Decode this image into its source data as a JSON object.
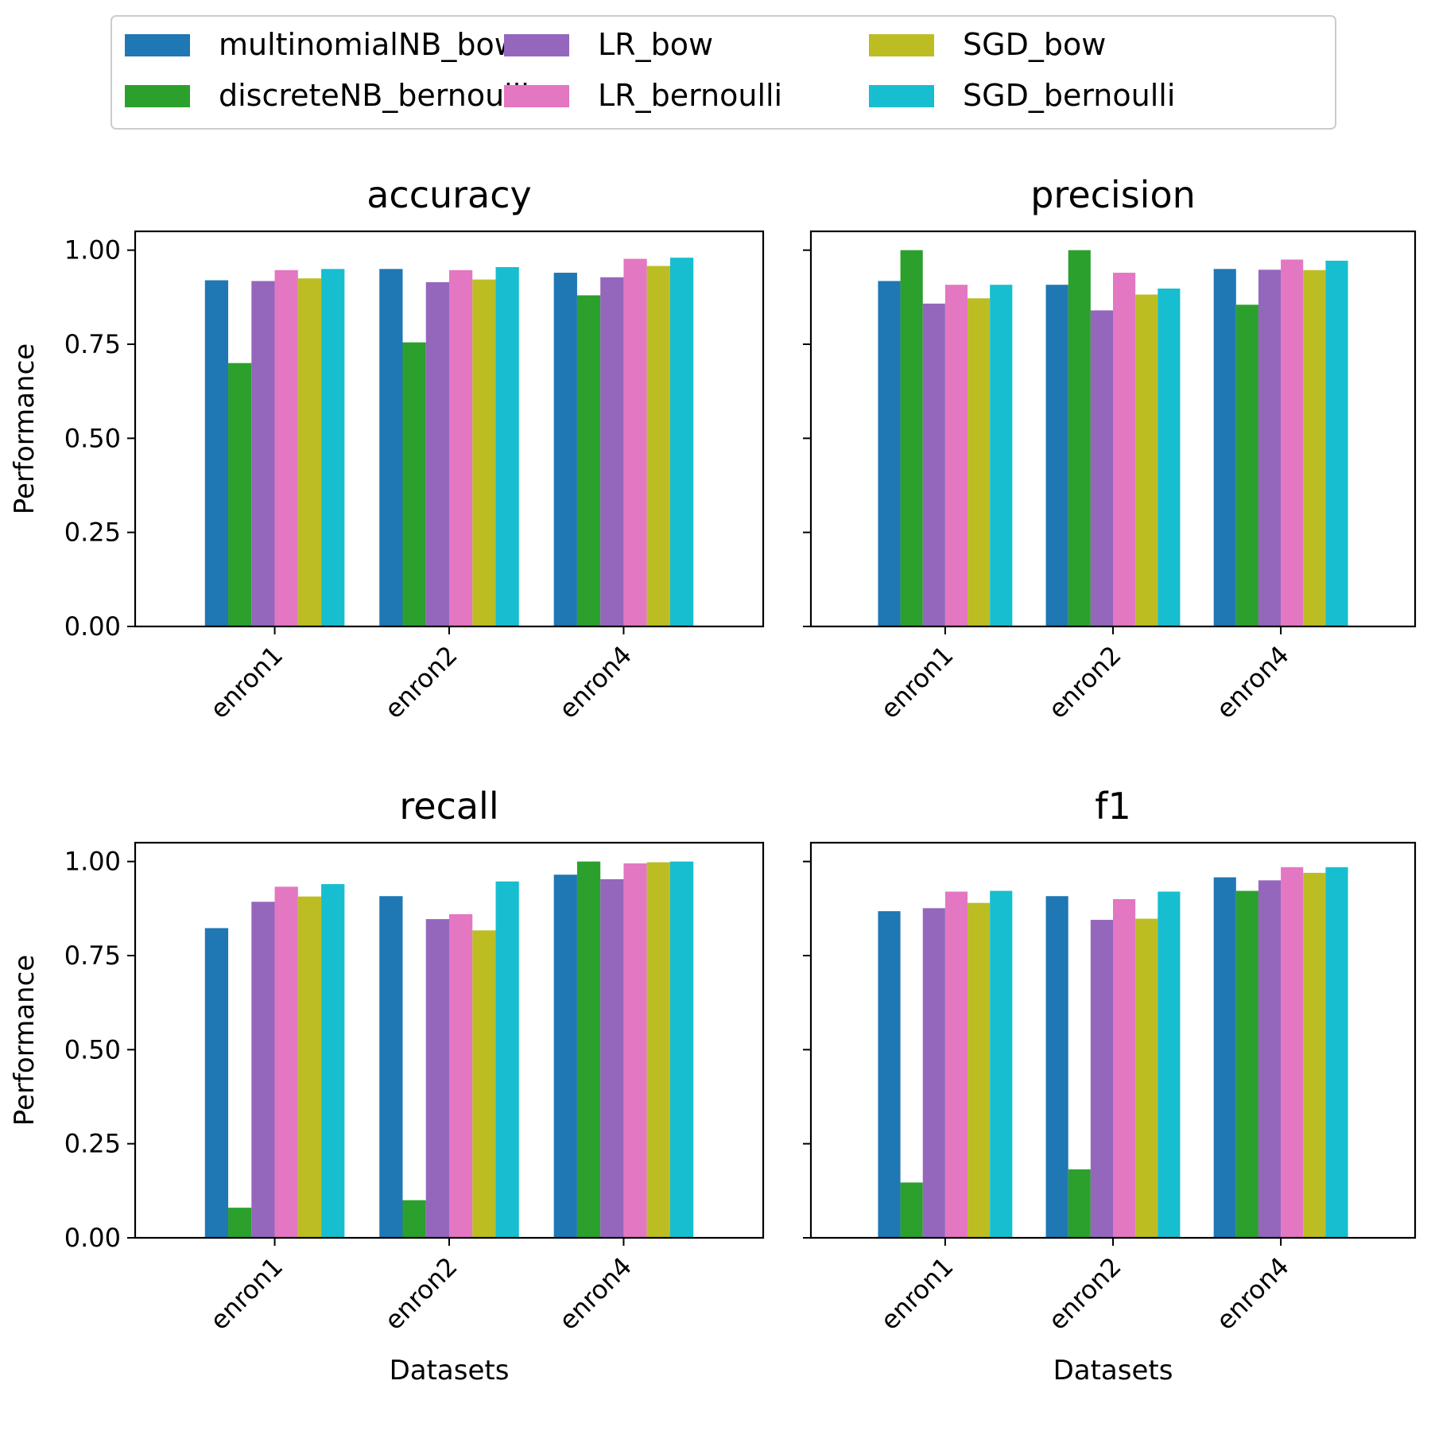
{
  "legend": {
    "entries": [
      {
        "name": "multinomialNB_bow",
        "color": "#1f77b4"
      },
      {
        "name": "discreteNB_bernoulli",
        "color": "#2ca02c"
      },
      {
        "name": "LR_bow",
        "color": "#9467bd"
      },
      {
        "name": "LR_bernoulli",
        "color": "#e377c2"
      },
      {
        "name": "SGD_bow",
        "color": "#bcbd22"
      },
      {
        "name": "SGD_bernoulli",
        "color": "#17becf"
      }
    ],
    "placement": "top-center",
    "columns": 3
  },
  "chart_data": [
    {
      "type": "bar",
      "title": "accuracy",
      "xlabel": "",
      "ylabel": "Performance",
      "categories": [
        "enron1",
        "enron2",
        "enron4"
      ],
      "ylim": [
        0,
        1.05
      ],
      "yticks": [
        "0.00",
        "0.25",
        "0.50",
        "0.75",
        "1.00"
      ],
      "grid": false,
      "series": [
        {
          "name": "multinomialNB_bow",
          "values": [
            0.92,
            0.95,
            0.94
          ]
        },
        {
          "name": "discreteNB_bernoulli",
          "values": [
            0.7,
            0.755,
            0.88
          ]
        },
        {
          "name": "LR_bow",
          "values": [
            0.918,
            0.915,
            0.928
          ]
        },
        {
          "name": "LR_bernoulli",
          "values": [
            0.947,
            0.947,
            0.977
          ]
        },
        {
          "name": "SGD_bow",
          "values": [
            0.925,
            0.922,
            0.958
          ]
        },
        {
          "name": "SGD_bernoulli",
          "values": [
            0.95,
            0.955,
            0.98
          ]
        }
      ]
    },
    {
      "type": "bar",
      "title": "precision",
      "xlabel": "",
      "ylabel": "",
      "categories": [
        "enron1",
        "enron2",
        "enron4"
      ],
      "ylim": [
        0,
        1.05
      ],
      "yticks": [
        "",
        "",
        "",
        "",
        ""
      ],
      "grid": false,
      "series": [
        {
          "name": "multinomialNB_bow",
          "values": [
            0.918,
            0.908,
            0.95
          ]
        },
        {
          "name": "discreteNB_bernoulli",
          "values": [
            1.0,
            1.0,
            0.855
          ]
        },
        {
          "name": "LR_bow",
          "values": [
            0.858,
            0.84,
            0.948
          ]
        },
        {
          "name": "LR_bernoulli",
          "values": [
            0.908,
            0.94,
            0.975
          ]
        },
        {
          "name": "SGD_bow",
          "values": [
            0.872,
            0.882,
            0.947
          ]
        },
        {
          "name": "SGD_bernoulli",
          "values": [
            0.908,
            0.898,
            0.972
          ]
        }
      ]
    },
    {
      "type": "bar",
      "title": "recall",
      "xlabel": "Datasets",
      "ylabel": "Performance",
      "categories": [
        "enron1",
        "enron2",
        "enron4"
      ],
      "ylim": [
        0,
        1.05
      ],
      "yticks": [
        "0.00",
        "0.25",
        "0.50",
        "0.75",
        "1.00"
      ],
      "grid": false,
      "series": [
        {
          "name": "multinomialNB_bow",
          "values": [
            0.823,
            0.908,
            0.965
          ]
        },
        {
          "name": "discreteNB_bernoulli",
          "values": [
            0.08,
            0.1,
            1.0
          ]
        },
        {
          "name": "LR_bow",
          "values": [
            0.893,
            0.847,
            0.953
          ]
        },
        {
          "name": "LR_bernoulli",
          "values": [
            0.933,
            0.86,
            0.995
          ]
        },
        {
          "name": "SGD_bow",
          "values": [
            0.907,
            0.817,
            0.998
          ]
        },
        {
          "name": "SGD_bernoulli",
          "values": [
            0.94,
            0.947,
            1.0
          ]
        }
      ]
    },
    {
      "type": "bar",
      "title": "f1",
      "xlabel": "Datasets",
      "ylabel": "",
      "categories": [
        "enron1",
        "enron2",
        "enron4"
      ],
      "ylim": [
        0,
        1.05
      ],
      "yticks": [
        "",
        "",
        "",
        "",
        ""
      ],
      "grid": false,
      "series": [
        {
          "name": "multinomialNB_bow",
          "values": [
            0.868,
            0.908,
            0.958
          ]
        },
        {
          "name": "discreteNB_bernoulli",
          "values": [
            0.147,
            0.182,
            0.922
          ]
        },
        {
          "name": "LR_bow",
          "values": [
            0.876,
            0.845,
            0.95
          ]
        },
        {
          "name": "LR_bernoulli",
          "values": [
            0.92,
            0.9,
            0.985
          ]
        },
        {
          "name": "SGD_bow",
          "values": [
            0.89,
            0.848,
            0.97
          ]
        },
        {
          "name": "SGD_bernoulli",
          "values": [
            0.922,
            0.92,
            0.985
          ]
        }
      ]
    }
  ]
}
